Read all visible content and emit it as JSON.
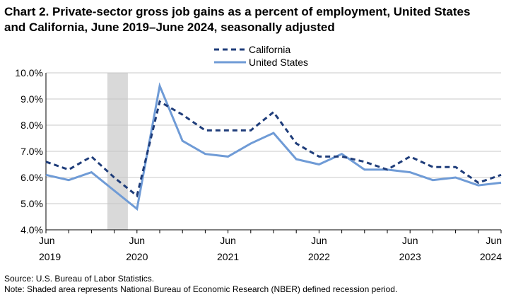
{
  "title_lines": [
    "Chart 2. Private-sector gross job gains as a percent of employment, United States",
    "and California, June 2019–June 2024, seasonally adjusted"
  ],
  "footnotes": {
    "source": "Source: U.S. Bureau of Labor Statistics.",
    "note": "Note: Shaded area represents National Bureau of Economic Research (NBER) defined  recession period."
  },
  "chart_data": {
    "type": "line",
    "title": "Chart 2. Private-sector gross job gains as a percent of employment, United States and California, June 2019–June 2024, seasonally adjusted",
    "xlabel": "",
    "ylabel": "",
    "x": [
      "Jun 2019",
      "Sep 2019",
      "Dec 2019",
      "Mar 2020",
      "Jun 2020",
      "Sep 2020",
      "Dec 2020",
      "Mar 2021",
      "Jun 2021",
      "Sep 2021",
      "Dec 2021",
      "Mar 2022",
      "Jun 2022",
      "Sep 2022",
      "Dec 2022",
      "Mar 2023",
      "Jun 2023",
      "Sep 2023",
      "Dec 2023",
      "Mar 2024",
      "Jun 2024"
    ],
    "series": [
      {
        "name": "California",
        "style": "dashed",
        "color": "#1f3d7a",
        "values": [
          6.6,
          6.3,
          6.8,
          6.0,
          5.3,
          8.9,
          8.4,
          7.8,
          7.8,
          7.8,
          8.5,
          7.3,
          6.8,
          6.8,
          6.6,
          6.3,
          6.8,
          6.4,
          6.4,
          5.8,
          6.1
        ]
      },
      {
        "name": "United States",
        "style": "solid",
        "color": "#6f9bd6",
        "values": [
          6.1,
          5.9,
          6.2,
          5.5,
          4.8,
          9.5,
          7.4,
          6.9,
          6.8,
          7.3,
          7.7,
          6.7,
          6.5,
          6.9,
          6.3,
          6.3,
          6.2,
          5.9,
          6.0,
          5.7,
          5.8
        ]
      }
    ],
    "ylim": [
      4.0,
      10.0
    ],
    "yticks": [
      4.0,
      5.0,
      6.0,
      7.0,
      8.0,
      9.0,
      10.0
    ],
    "ytick_labels": [
      "4.0%",
      "5.0%",
      "6.0%",
      "7.0%",
      "8.0%",
      "9.0%",
      "10.0%"
    ],
    "xtick_labels": [
      {
        "index": 0,
        "month": "Jun",
        "year": "2019"
      },
      {
        "index": 4,
        "month": "Jun",
        "year": "2020"
      },
      {
        "index": 8,
        "month": "Jun",
        "year": "2021"
      },
      {
        "index": 12,
        "month": "Jun",
        "year": "2022"
      },
      {
        "index": 16,
        "month": "Jun",
        "year": "2023"
      },
      {
        "index": 20,
        "month": "Jun",
        "year": "2024"
      }
    ],
    "shaded_region": {
      "from_index": 2.7,
      "to_index": 3.6,
      "color": "#d9d9d9"
    },
    "grid": "horizontal",
    "legend_position": "top-center",
    "colors": {
      "grid": "#c8c8c8",
      "axis": "#000000"
    }
  }
}
